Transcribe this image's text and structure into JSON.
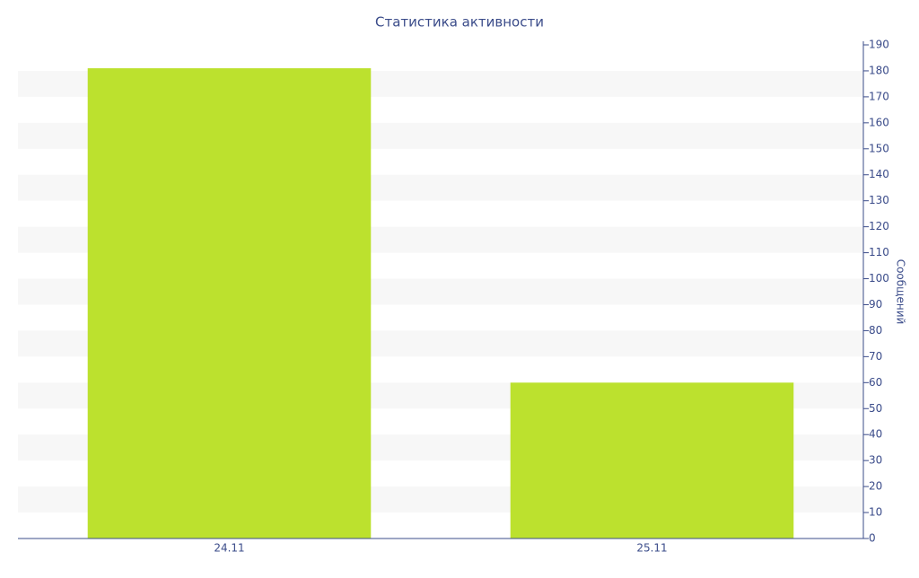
{
  "chart_data": {
    "type": "bar",
    "title": "Статистика активности",
    "y_axis_label": "Сообщений",
    "categories": [
      "24.11",
      "25.11"
    ],
    "values": [
      181,
      60
    ],
    "color": "#bce12e",
    "ylim": [
      0,
      190
    ],
    "yticks": [
      0,
      10,
      20,
      30,
      40,
      50,
      60,
      70,
      80,
      90,
      100,
      110,
      120,
      130,
      140,
      150,
      160,
      170,
      180,
      190
    ],
    "grid": "bands",
    "y_axis_side": "right"
  }
}
